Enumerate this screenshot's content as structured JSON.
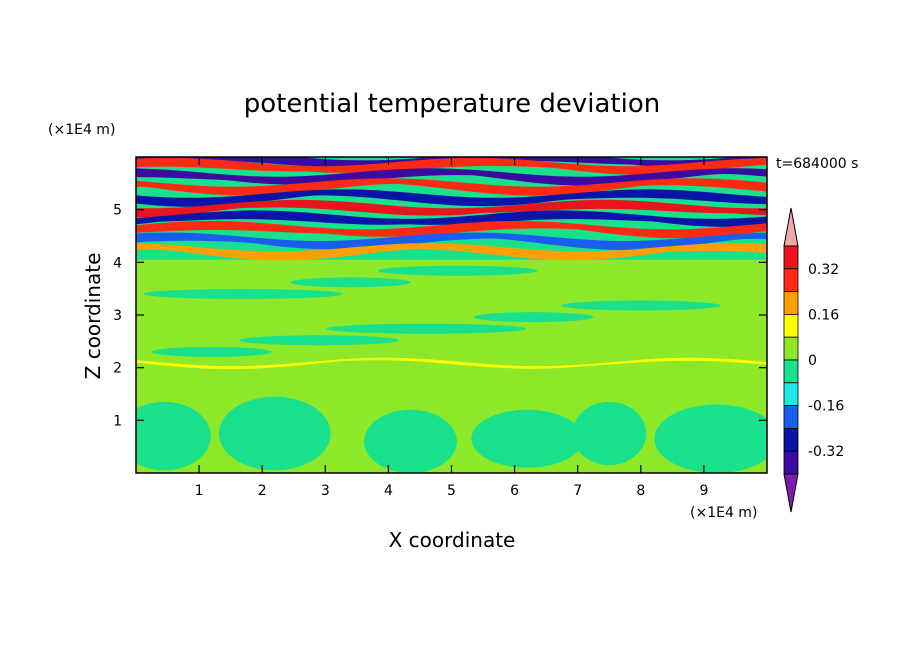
{
  "chart_data": {
    "type": "heatmap",
    "title": "potential temperature deviation",
    "xlabel": "X coordinate",
    "ylabel": "Z coordinate",
    "x_unit": "(×1E4 m)",
    "y_unit": "(×1E4 m)",
    "time_label": "t=684000 s",
    "xlim": [
      0,
      10
    ],
    "ylim": [
      0,
      6
    ],
    "x_ticks": [
      "1",
      "2",
      "3",
      "4",
      "5",
      "6",
      "7",
      "8",
      "9"
    ],
    "y_ticks": [
      "1",
      "2",
      "3",
      "4",
      "5"
    ],
    "colorbar": {
      "levels": [
        -0.4,
        -0.32,
        -0.24,
        -0.16,
        -0.08,
        0,
        0.08,
        0.16,
        0.24,
        0.32,
        0.4
      ],
      "labels": [
        "0.32",
        "0.16",
        "0",
        "-0.16",
        "-0.32"
      ],
      "colors": [
        "#7a1fb0",
        "#3b0aa0",
        "#0a14a8",
        "#1a5ef0",
        "#1ee8e8",
        "#19e08a",
        "#8ee82a",
        "#ffff00",
        "#ff9f00",
        "#ff2a14",
        "#e8141e",
        "#f0a8a8"
      ]
    },
    "bands": [
      {
        "z": 5.93,
        "v": -0.36
      },
      {
        "z": 5.82,
        "v": 0.24
      },
      {
        "z": 5.62,
        "v": -0.36
      },
      {
        "z": 5.43,
        "v": 0.3
      },
      {
        "z": 5.22,
        "v": -0.3
      },
      {
        "z": 5.02,
        "v": 0.36
      },
      {
        "z": 4.82,
        "v": -0.3
      },
      {
        "z": 4.62,
        "v": 0.24
      },
      {
        "z": 4.4,
        "v": -0.24
      },
      {
        "z": 4.2,
        "v": 0.16
      },
      {
        "z": 2.08,
        "v": 0.14
      }
    ],
    "background_value": 0.02,
    "lower_plumes_value": -0.04
  }
}
